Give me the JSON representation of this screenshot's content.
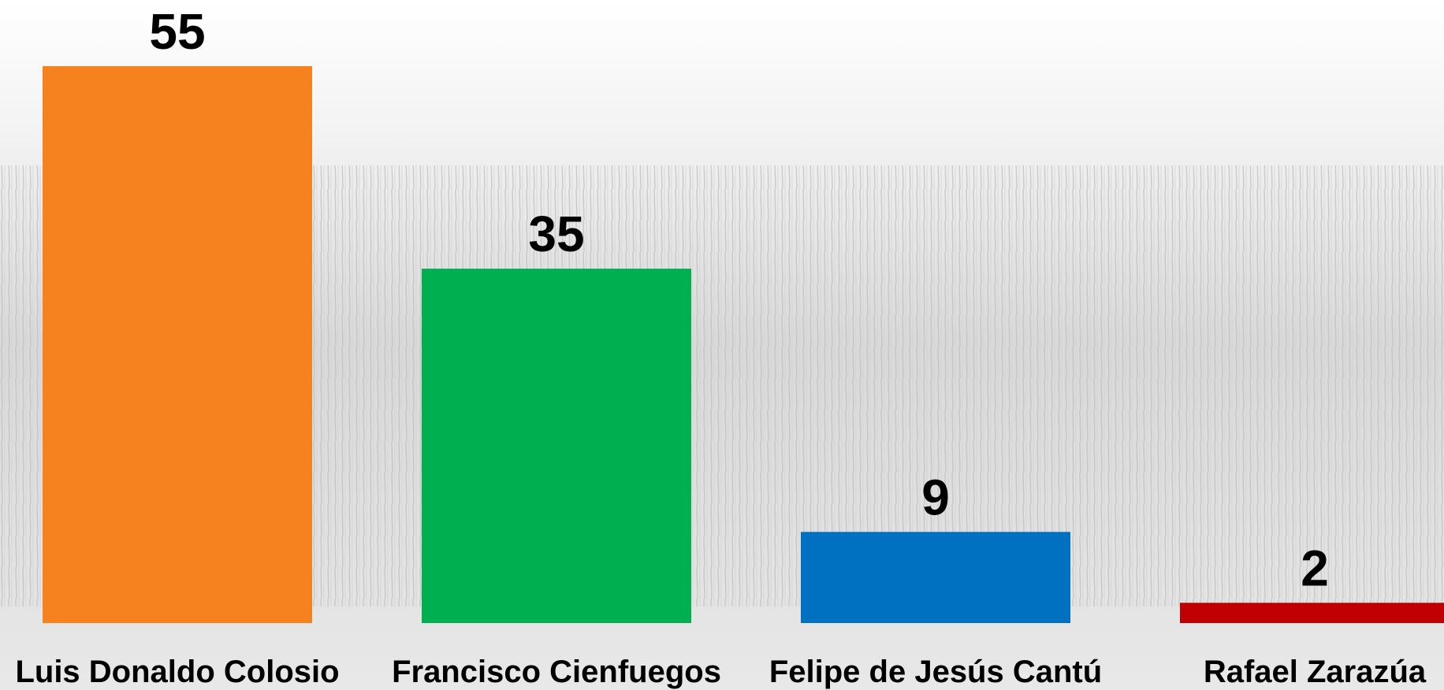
{
  "chart_data": {
    "type": "bar",
    "categories": [
      "Luis Donaldo Colosio",
      "Francisco Cienfuegos",
      "Felipe de Jesús Cantú",
      "Rafael Zarazúa"
    ],
    "values": [
      55,
      35,
      9,
      2
    ],
    "colors": [
      "#f5821f",
      "#00b050",
      "#0070c0",
      "#c00000"
    ]
  }
}
